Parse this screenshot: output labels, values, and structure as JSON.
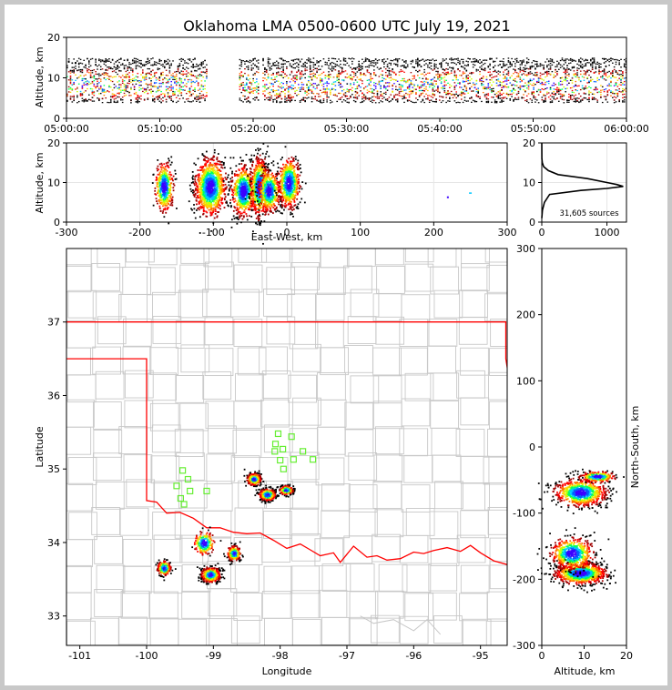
{
  "title": "Oklahoma LMA 0500-0600 UTC July 19, 2021",
  "colors": {
    "state_border": "#ff0000",
    "county": "#c8c8c8",
    "station": "#66ee33",
    "axes": "#000000"
  },
  "chart_data": [
    {
      "id": "time_height",
      "type": "heatmap",
      "ylabel": "Altitude, km",
      "xlabel": "",
      "x_ticks": [
        "05:00:00",
        "05:10:00",
        "05:20:00",
        "05:30:00",
        "05:40:00",
        "05:50:00",
        "06:00:00"
      ],
      "xlim_min": [
        0,
        60
      ],
      "ylim": [
        0,
        20
      ],
      "y_ticks": [
        0,
        10,
        20
      ],
      "activity_segments_min": [
        [
          0,
          15
        ],
        [
          18.5,
          20.5
        ],
        [
          21,
          60
        ]
      ],
      "altitude_range_km": [
        4,
        15
      ]
    },
    {
      "id": "ew_height",
      "type": "heatmap",
      "xlabel": "East-West, km",
      "ylabel": "Altitude, km",
      "xlim": [
        -300,
        300
      ],
      "ylim": [
        0,
        20
      ],
      "x_ticks": [
        -300,
        -200,
        -100,
        0,
        100,
        200,
        300
      ],
      "y_ticks": [
        0,
        10,
        20
      ],
      "clusters": [
        {
          "x": -168,
          "z": 9,
          "sx": 6,
          "sz": 3,
          "n": 100
        },
        {
          "x": -105,
          "z": 9,
          "sx": 10,
          "sz": 3.5,
          "n": 260
        },
        {
          "x": -60,
          "z": 8,
          "sx": 8,
          "sz": 3,
          "n": 160
        },
        {
          "x": -38,
          "z": 9,
          "sx": 6,
          "sz": 3.5,
          "n": 170
        },
        {
          "x": -25,
          "z": 8,
          "sx": 7,
          "sz": 2.5,
          "n": 120
        },
        {
          "x": 2,
          "z": 10,
          "sx": 7,
          "sz": 3,
          "n": 160
        }
      ]
    },
    {
      "id": "alt_histogram",
      "type": "line",
      "x_ticks": [
        0,
        1000
      ],
      "y_ticks": [
        0,
        10,
        20
      ],
      "xlim": [
        0,
        1300
      ],
      "ylim": [
        0,
        20
      ],
      "annotation": "31,605 sources",
      "profile": [
        [
          1,
          0
        ],
        [
          3,
          10
        ],
        [
          5,
          40
        ],
        [
          7,
          120
        ],
        [
          8,
          600
        ],
        [
          8.5,
          1000
        ],
        [
          9,
          1250
        ],
        [
          9.5,
          1150
        ],
        [
          10,
          1000
        ],
        [
          11,
          700
        ],
        [
          12,
          250
        ],
        [
          13,
          100
        ],
        [
          14,
          30
        ],
        [
          15,
          8
        ],
        [
          16,
          2
        ],
        [
          20,
          0
        ]
      ]
    },
    {
      "id": "plan_view",
      "type": "scatter",
      "xlabel": "Longitude",
      "ylabel": "Latitude",
      "xlim": [
        -101.2,
        -94.6
      ],
      "ylim": [
        32.6,
        38.0
      ],
      "x_ticks": [
        -101,
        -100,
        -99,
        -98,
        -97,
        -96,
        -95
      ],
      "y_ticks": [
        33,
        34,
        35,
        36,
        37
      ],
      "clusters": [
        {
          "lon": -98.4,
          "lat": 34.87,
          "slon": 0.05,
          "slat": 0.04,
          "n": 120
        },
        {
          "lon": -98.2,
          "lat": 34.66,
          "slon": 0.06,
          "slat": 0.04,
          "n": 130
        },
        {
          "lon": -97.92,
          "lat": 34.72,
          "slon": 0.05,
          "slat": 0.03,
          "n": 90
        },
        {
          "lon": -99.05,
          "lat": 33.57,
          "slon": 0.07,
          "slat": 0.05,
          "n": 180
        },
        {
          "lon": -98.7,
          "lat": 33.86,
          "slon": 0.05,
          "slat": 0.05,
          "n": 90
        },
        {
          "lon": -99.75,
          "lat": 33.66,
          "slon": 0.05,
          "slat": 0.05,
          "n": 80
        },
        {
          "lon": -99.15,
          "lat": 34.0,
          "slon": 0.08,
          "slat": 0.08,
          "n": 60
        }
      ],
      "stations": [
        [
          -98.03,
          35.48
        ],
        [
          -97.83,
          35.44
        ],
        [
          -98.07,
          35.34
        ],
        [
          -98.08,
          35.24
        ],
        [
          -97.96,
          35.27
        ],
        [
          -97.66,
          35.24
        ],
        [
          -98.0,
          35.12
        ],
        [
          -97.8,
          35.13
        ],
        [
          -97.51,
          35.13
        ],
        [
          -97.95,
          35.0
        ],
        [
          -99.46,
          34.98
        ],
        [
          -99.38,
          34.86
        ],
        [
          -99.55,
          34.77
        ],
        [
          -99.35,
          34.7
        ],
        [
          -99.1,
          34.7
        ],
        [
          -99.49,
          34.6
        ],
        [
          -99.44,
          34.52
        ]
      ]
    },
    {
      "id": "ns_height",
      "type": "heatmap",
      "xlabel": "Altitude, km",
      "ylabel": "North-South, km",
      "xlim": [
        0,
        20
      ],
      "ylim": [
        -300,
        300
      ],
      "x_ticks": [
        0,
        10,
        20
      ],
      "y_ticks": [
        -300,
        -200,
        -100,
        0,
        100,
        200,
        300
      ],
      "clusters": [
        {
          "z": 9,
          "y": -68,
          "sz": 3,
          "sy": 10,
          "n": 200
        },
        {
          "z": 13,
          "y": -44,
          "sz": 2,
          "sy": 4,
          "n": 60
        },
        {
          "z": 9,
          "y": -190,
          "sz": 3,
          "sy": 8,
          "n": 260
        },
        {
          "z": 7,
          "y": -160,
          "sz": 2.5,
          "sy": 12,
          "n": 140
        }
      ]
    }
  ]
}
